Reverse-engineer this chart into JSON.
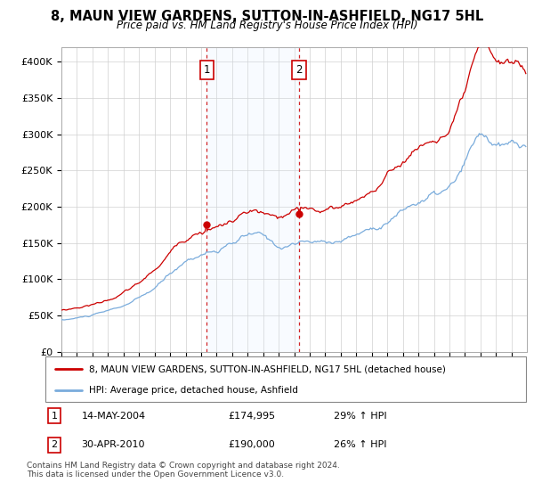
{
  "title": "8, MAUN VIEW GARDENS, SUTTON-IN-ASHFIELD, NG17 5HL",
  "subtitle": "Price paid vs. HM Land Registry's House Price Index (HPI)",
  "title_fontsize": 10.5,
  "subtitle_fontsize": 8.5,
  "ylim": [
    0,
    420000
  ],
  "yticks": [
    0,
    50000,
    100000,
    150000,
    200000,
    250000,
    300000,
    350000,
    400000
  ],
  "ytick_labels": [
    "£0",
    "£50K",
    "£100K",
    "£150K",
    "£200K",
    "£250K",
    "£300K",
    "£350K",
    "£400K"
  ],
  "plot_bg": "#ffffff",
  "grid_color": "#d0d0d0",
  "sale1_x": 2004.37,
  "sale1_price": 174995,
  "sale2_x": 2010.33,
  "sale2_price": 190000,
  "red_color": "#cc0000",
  "blue_color": "#7aacdc",
  "shade_color": "#ddeeff",
  "legend_line1": "8, MAUN VIEW GARDENS, SUTTON-IN-ASHFIELD, NG17 5HL (detached house)",
  "legend_line2": "HPI: Average price, detached house, Ashfield",
  "footnote": "Contains HM Land Registry data © Crown copyright and database right 2024.\nThis data is licensed under the Open Government Licence v3.0."
}
